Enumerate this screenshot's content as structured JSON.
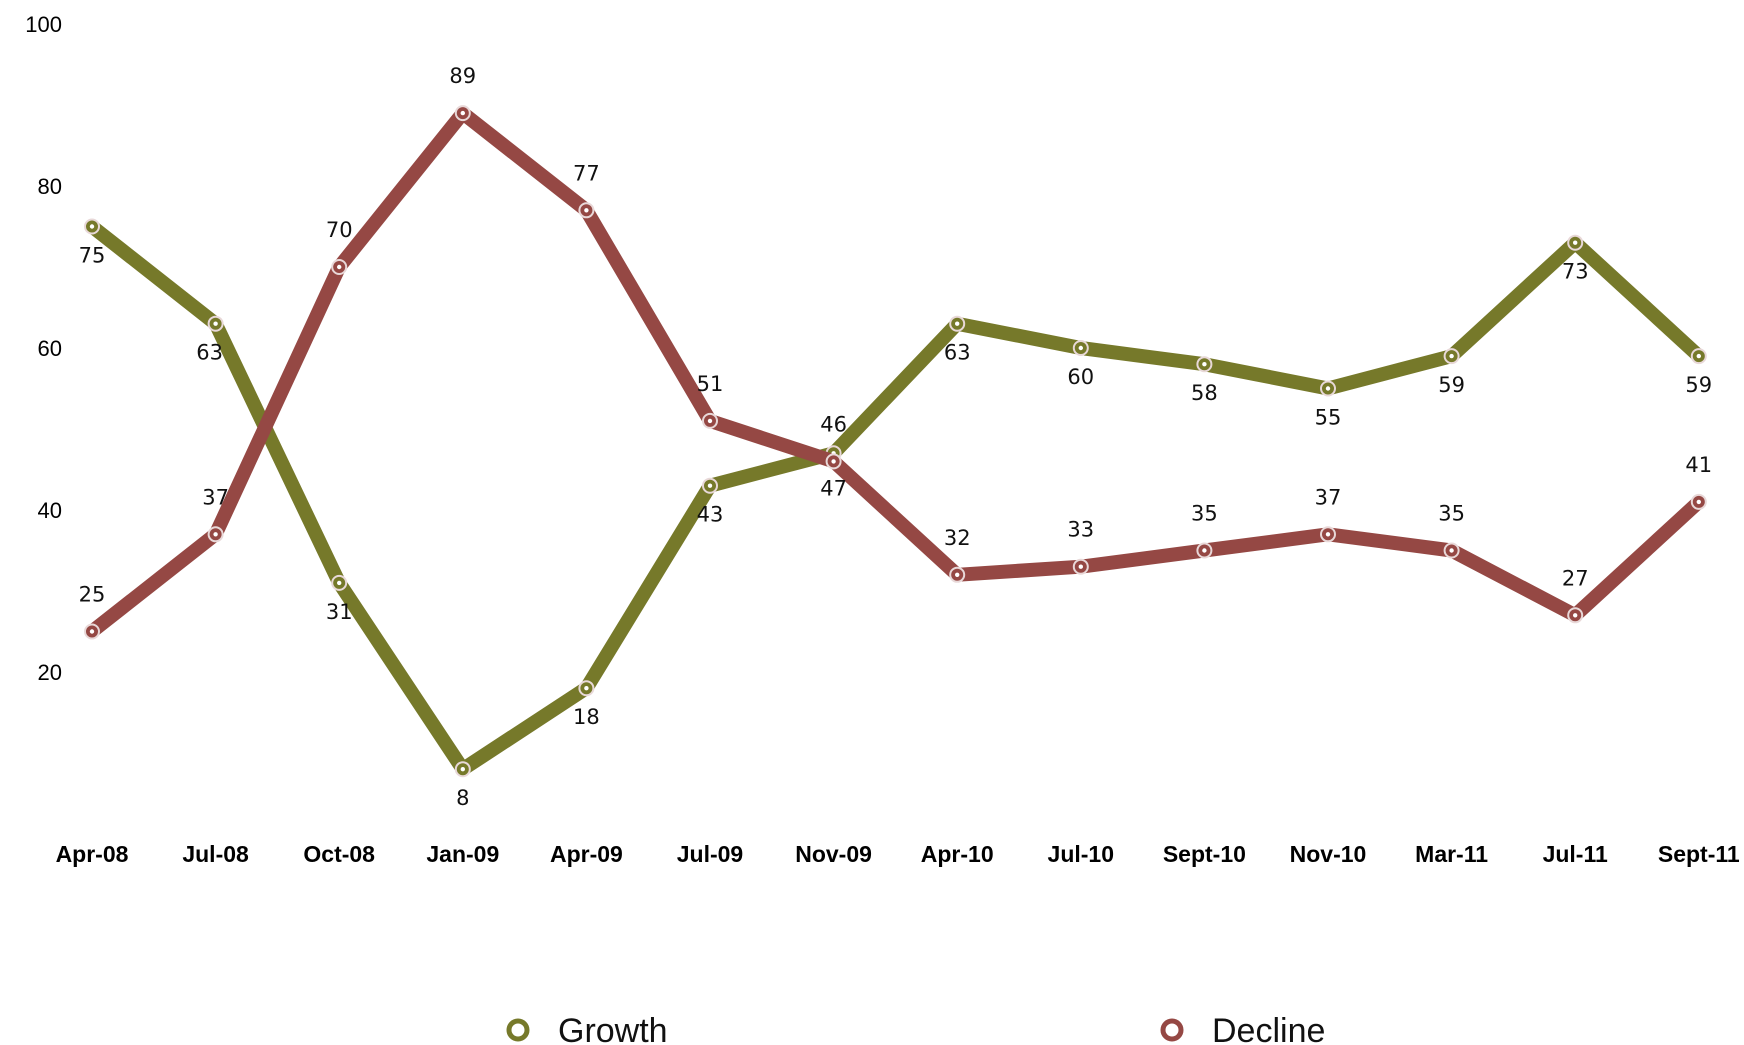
{
  "chart_data": {
    "type": "line",
    "categories": [
      "Apr-08",
      "Jul-08",
      "Oct-08",
      "Jan-09",
      "Apr-09",
      "Jul-09",
      "Nov-09",
      "Apr-10",
      "Jul-10",
      "Sept-10",
      "Nov-10",
      "Mar-11",
      "Jul-11",
      "Sept-11"
    ],
    "series": [
      {
        "name": "Growth",
        "color": "#76792A",
        "values": [
          75,
          63,
          31,
          8,
          18,
          43,
          47,
          63,
          60,
          58,
          55,
          59,
          73,
          59
        ]
      },
      {
        "name": "Decline",
        "color": "#954844",
        "values": [
          25,
          37,
          70,
          89,
          77,
          51,
          46,
          32,
          33,
          35,
          37,
          35,
          27,
          41
        ]
      }
    ],
    "y_ticks": [
      20,
      40,
      60,
      80,
      100
    ],
    "ylim": [
      0,
      100
    ],
    "grid": false,
    "legend_position": "bottom"
  }
}
